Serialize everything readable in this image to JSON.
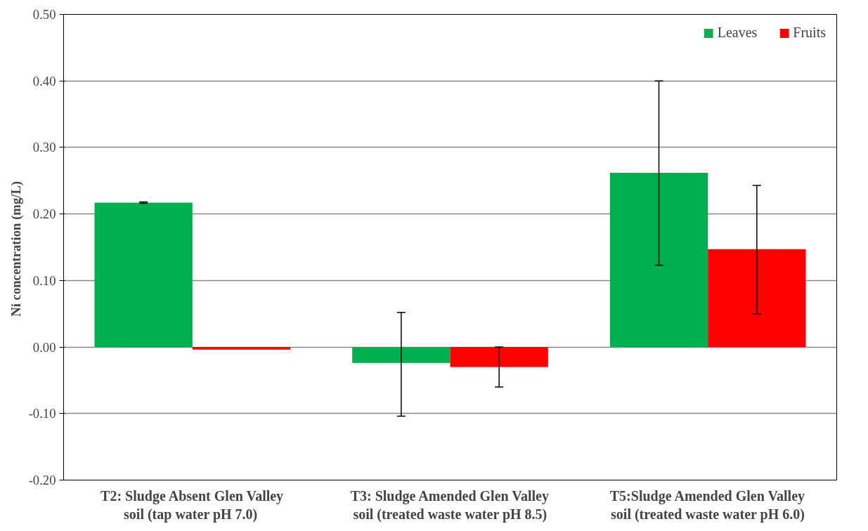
{
  "chart_data": {
    "type": "bar",
    "ylabel": "Ni concentration  (mg/L)",
    "categories": [
      "T2: Sludge Absent Glen Valley\nsoil (tap water  pH 7.0)",
      "T3: Sludge Amended Glen Valley\nsoil (treated waste water pH 8.5)",
      "T5:Sludge Amended Glen Valley\nsoil (treated waste water pH 6.0)"
    ],
    "series": [
      {
        "name": "Leaves",
        "color": "#00b050",
        "values": [
          0.217,
          -0.024,
          0.262
        ],
        "errors": [
          [
            0.216,
            0.218
          ],
          [
            -0.104,
            0.052
          ],
          [
            0.123,
            0.4
          ]
        ]
      },
      {
        "name": "Fruits",
        "color": "#ff0000",
        "values": [
          -0.004,
          -0.03,
          0.147
        ],
        "errors": [
          null,
          [
            -0.06,
            0.0
          ],
          [
            0.05,
            0.243
          ]
        ]
      }
    ],
    "ylim": [
      -0.2,
      0.5
    ],
    "yticks": [
      {
        "value": -0.2,
        "label": "-0.20"
      },
      {
        "value": -0.1,
        "label": "-0.10"
      },
      {
        "value": 0,
        "label": "0.00"
      },
      {
        "value": 0.1,
        "label": "0.10"
      },
      {
        "value": 0.2,
        "label": "0.20"
      },
      {
        "value": 0.3,
        "label": "0.30"
      },
      {
        "value": 0.4,
        "label": "0.40"
      },
      {
        "value": 0.5,
        "label": "0.50"
      }
    ],
    "grid": "y",
    "legend": "top right"
  }
}
